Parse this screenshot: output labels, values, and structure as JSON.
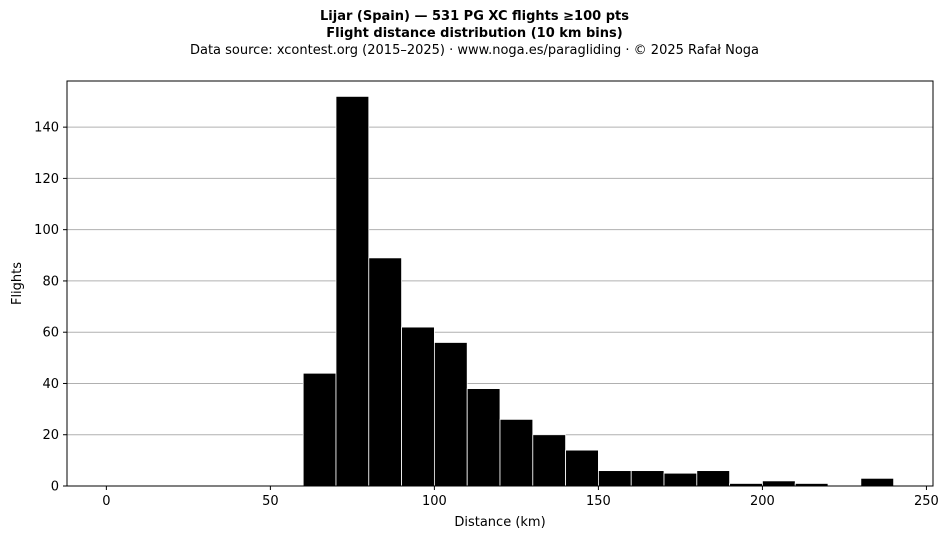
{
  "chart_data": {
    "type": "bar",
    "title": "Lijar (Spain)  —  531 PG XC flights ≥100 pts",
    "subtitle": "Flight distance distribution (10 km bins)",
    "source_line": "Data source: xcontest.org (2015–2025)  ·  www.noga.es/paragliding  ·  © 2025 Rafał Noga",
    "xlabel": "Distance (km)",
    "ylabel": "Flights",
    "xlim": [
      -12,
      252
    ],
    "ylim": [
      0,
      158
    ],
    "grid": "y",
    "bar_color": "#000000",
    "bar_edge_color": "#ffffff",
    "grid_color": "#b0b0b0",
    "bin_width": 10,
    "bins_start": [
      60,
      70,
      80,
      90,
      100,
      110,
      120,
      130,
      140,
      150,
      160,
      170,
      180,
      190,
      200,
      210,
      230
    ],
    "values": [
      44,
      152,
      89,
      62,
      56,
      38,
      26,
      20,
      14,
      6,
      6,
      5,
      6,
      1,
      2,
      1,
      3
    ],
    "x_ticks": [
      0,
      50,
      100,
      150,
      200,
      250
    ],
    "y_ticks": [
      0,
      20,
      40,
      60,
      80,
      100,
      120,
      140
    ]
  }
}
